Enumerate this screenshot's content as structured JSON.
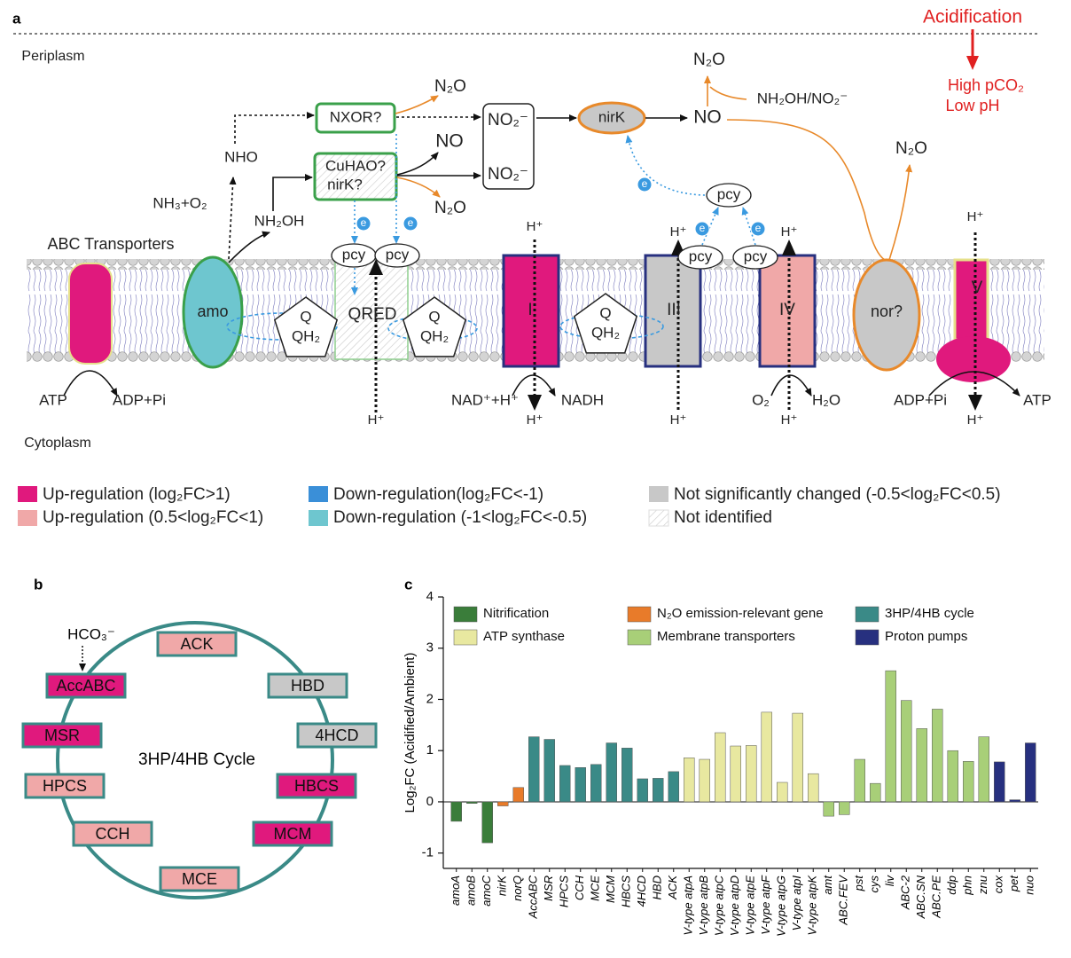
{
  "panel_a": {
    "label": "a",
    "acidification": "Acidification",
    "high_pco2": "High pCO₂",
    "low_ph": "Low pH",
    "periplasm": "Periplasm",
    "cytoplasm": "Cytoplasm",
    "labels": {
      "nxor": "NXOR?",
      "n2o": "N₂O",
      "no": "NO",
      "no2": "NO₂⁻",
      "nirk": "nirK",
      "cuhao": "CuHAO?",
      "cuhao_nirk": "nirK?",
      "nho": "NHO",
      "nh3": "NH₃+O₂",
      "nh2oh": "NH₂OH",
      "abc": "ABC Transporters",
      "amo": "amo",
      "pcy": "pcy",
      "qred": "QRED",
      "q": "Q",
      "qh2": "QH₂",
      "c1": "I",
      "c3": "III",
      "c4": "IV",
      "nor": "nor?",
      "c5": "V",
      "atp": "ATP",
      "adp": "ADP+Pi",
      "nad": "NAD⁺+H⁺",
      "nadh": "NADH",
      "hplus": "H⁺",
      "o2": "O₂",
      "h2o": "H₂O",
      "nh2oh_no2": "NH₂OH/NO₂⁻",
      "electron": "e"
    },
    "legend": [
      "Up-regulation (log₂FC>1)",
      "Up-regulation (0.5<log₂FC<1)",
      "Down-regulation(log₂FC<-1)",
      "Down-regulation (-1<log₂FC<-0.5)",
      "Not significantly changed (-0.5<log₂FC<0.5)",
      "Not identified"
    ]
  },
  "panel_b": {
    "label": "b",
    "title": "3HP/4HB Cycle",
    "input": "HCO₃⁻",
    "nodes": [
      {
        "label": "ACK",
        "color": "#f0a8a8"
      },
      {
        "label": "HBD",
        "color": "#c8c8c8"
      },
      {
        "label": "4HCD",
        "color": "#c8c8c8"
      },
      {
        "label": "HBCS",
        "color": "#e0197d"
      },
      {
        "label": "MCM",
        "color": "#e0197d"
      },
      {
        "label": "MCE",
        "color": "#f0a8a8"
      },
      {
        "label": "CCH",
        "color": "#f0a8a8"
      },
      {
        "label": "HPCS",
        "color": "#f0a8a8"
      },
      {
        "label": "MSR",
        "color": "#e0197d"
      },
      {
        "label": "AccABC",
        "color": "#e0197d"
      }
    ]
  },
  "chart_data": {
    "type": "bar",
    "panel_label": "c",
    "y_label": "Log₂FC (Acidified/Ambient)",
    "categories": [
      "amoA",
      "amoB",
      "amoC",
      "nirK",
      "norQ",
      "AccABC",
      "MSR",
      "HPCS",
      "CCH",
      "MCE",
      "MCM",
      "HBCS",
      "4HCD",
      "HBD",
      "ACK",
      "V-type atpA",
      "V-type atpB",
      "V-type atpC",
      "V-type atpD",
      "V-type atpE",
      "V-type atpF",
      "V-type atpG",
      "V-type atpI",
      "V-type atpK",
      "amt",
      "ABC.FEV",
      "pst",
      "cys",
      "liv",
      "ABC-2",
      "ABC.SN",
      "ABC.PE",
      "ddp",
      "phn",
      "znu",
      "cox",
      "pet",
      "nuo"
    ],
    "series": [
      {
        "name": "Nitrification",
        "color": "#3a7d3a",
        "values": [
          -0.38,
          -0.03,
          -0.8,
          null,
          null,
          null,
          null,
          null,
          null,
          null,
          null,
          null,
          null,
          null,
          null,
          null,
          null,
          null,
          null,
          null,
          null,
          null,
          null,
          null,
          null,
          null,
          null,
          null,
          null,
          null,
          null,
          null,
          null,
          null,
          null,
          null,
          null,
          null
        ]
      },
      {
        "name": "N₂O emission-relevant gene",
        "color": "#e87b2a",
        "values": [
          null,
          null,
          null,
          -0.08,
          0.28,
          null,
          null,
          null,
          null,
          null,
          null,
          null,
          null,
          null,
          null,
          null,
          null,
          null,
          null,
          null,
          null,
          null,
          null,
          null,
          null,
          null,
          null,
          null,
          null,
          null,
          null,
          null,
          null,
          null,
          null,
          null,
          null,
          null
        ]
      },
      {
        "name": "3HP/4HB cycle",
        "color": "#3a8a87",
        "values": [
          null,
          null,
          null,
          null,
          null,
          1.27,
          1.22,
          0.71,
          0.67,
          0.73,
          1.15,
          1.05,
          0.45,
          0.46,
          0.59,
          null,
          null,
          null,
          null,
          null,
          null,
          null,
          null,
          null,
          null,
          null,
          null,
          null,
          null,
          null,
          null,
          null,
          null,
          null,
          null,
          null,
          null,
          null
        ]
      },
      {
        "name": "ATP synthase",
        "color": "#e8e8a0",
        "values": [
          null,
          null,
          null,
          null,
          null,
          null,
          null,
          null,
          null,
          null,
          null,
          null,
          null,
          null,
          null,
          0.86,
          0.83,
          1.35,
          1.09,
          1.1,
          1.75,
          0.38,
          1.73,
          0.55,
          null,
          null,
          null,
          null,
          null,
          null,
          null,
          null,
          null,
          null,
          null,
          null,
          null,
          null
        ]
      },
      {
        "name": "Membrane transporters",
        "color": "#a8cf78",
        "values": [
          null,
          null,
          null,
          null,
          null,
          null,
          null,
          null,
          null,
          null,
          null,
          null,
          null,
          null,
          null,
          null,
          null,
          null,
          null,
          null,
          null,
          null,
          null,
          null,
          -0.28,
          -0.25,
          0.83,
          0.36,
          2.56,
          1.98,
          1.43,
          1.81,
          1.0,
          0.79,
          1.27,
          null,
          null,
          null
        ]
      },
      {
        "name": "Proton pumps",
        "color": "#27307f",
        "values": [
          null,
          null,
          null,
          null,
          null,
          null,
          null,
          null,
          null,
          null,
          null,
          null,
          null,
          null,
          null,
          null,
          null,
          null,
          null,
          null,
          null,
          null,
          null,
          null,
          null,
          null,
          null,
          null,
          null,
          null,
          null,
          null,
          null,
          null,
          null,
          0.78,
          0.04,
          1.15
        ]
      }
    ],
    "ylim": [
      -1.3,
      4
    ],
    "yticks": [
      -1,
      0,
      1,
      2,
      3,
      4
    ],
    "legend": "top"
  }
}
